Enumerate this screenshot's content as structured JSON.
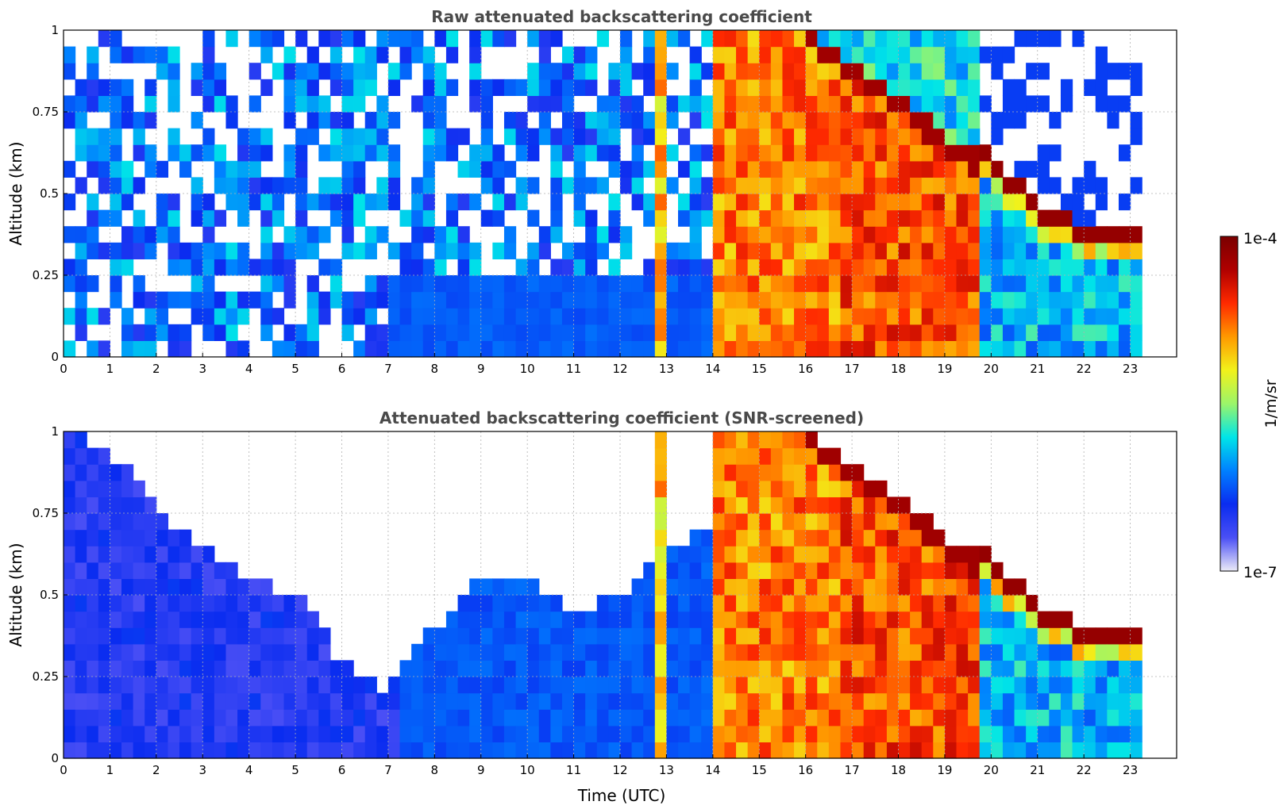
{
  "chart_data": [
    {
      "type": "heatmap",
      "title": "Raw attenuated backscattering coefficient",
      "xlabel": "",
      "ylabel": "Altitude (km)",
      "xlim": [
        0,
        24
      ],
      "ylim": [
        0,
        1
      ],
      "xticks": [
        "0",
        "1",
        "2",
        "3",
        "4",
        "5",
        "6",
        "7",
        "8",
        "9",
        "10",
        "11",
        "12",
        "13",
        "14",
        "15",
        "16",
        "17",
        "18",
        "19",
        "20",
        "21",
        "22",
        "23"
      ],
      "yticks": [
        "0",
        "0.25",
        "0.5",
        "0.75",
        "1"
      ],
      "grid": true,
      "data_extent_hours": [
        0,
        23.2
      ],
      "features": [
        {
          "name": "noise",
          "time_range": [
            0,
            12.8
          ],
          "altitude_range": [
            0.25,
            1
          ],
          "level_log10": -6.3
        },
        {
          "name": "surface layer",
          "time_range": [
            0,
            14
          ],
          "altitude_range": [
            0,
            0.25
          ],
          "level_log10": -6.2
        },
        {
          "name": "fog/cloud",
          "time_range": [
            14,
            19.7
          ],
          "altitude_range": [
            0,
            1
          ],
          "level_log10": -4.6
        },
        {
          "name": "cloud top",
          "time_range": [
            16.1,
            23.2
          ],
          "altitude_range": [
            0.3,
            1
          ],
          "level_log10": -4.1
        }
      ]
    },
    {
      "type": "heatmap",
      "title": "Attenuated backscattering coefficient (SNR-screened)",
      "xlabel": "Time (UTC)",
      "ylabel": "Altitude (km)",
      "xlim": [
        0,
        24
      ],
      "ylim": [
        0,
        1
      ],
      "xticks": [
        "0",
        "1",
        "2",
        "3",
        "4",
        "5",
        "6",
        "7",
        "8",
        "9",
        "10",
        "11",
        "12",
        "13",
        "14",
        "15",
        "16",
        "17",
        "18",
        "19",
        "20",
        "21",
        "22",
        "23"
      ],
      "yticks": [
        "0",
        "0.25",
        "0.5",
        "0.75",
        "1"
      ],
      "grid": true,
      "data_extent_hours": [
        0,
        23.2
      ],
      "boundary_layer_top_km": [
        [
          0,
          1.0
        ],
        [
          1,
          0.95
        ],
        [
          2,
          0.75
        ],
        [
          3,
          0.65
        ],
        [
          4,
          0.55
        ],
        [
          5,
          0.5
        ],
        [
          6,
          0.3
        ],
        [
          7,
          0.2
        ],
        [
          7.5,
          0.3
        ],
        [
          8,
          0.4
        ],
        [
          9,
          0.55
        ],
        [
          10,
          0.55
        ],
        [
          11,
          0.45
        ],
        [
          12,
          0.5
        ],
        [
          12.7,
          0.6
        ],
        [
          13,
          0.65
        ],
        [
          14,
          0.7
        ]
      ],
      "cloud_top_km": [
        [
          16.1,
          1.0
        ],
        [
          17,
          0.9
        ],
        [
          18,
          0.8
        ],
        [
          19,
          0.68
        ],
        [
          20,
          0.6
        ],
        [
          21,
          0.45
        ],
        [
          22,
          0.38
        ],
        [
          23,
          0.36
        ]
      ]
    }
  ],
  "colorbar": {
    "label": "1/m/sr",
    "max_label": "1e-4",
    "min_label": "1e-7",
    "colormap": "jet",
    "colors": [
      "#ecebf7",
      "#4a4ff5",
      "#0a2cf0",
      "#0080ff",
      "#00e5e8",
      "#9bf56a",
      "#f2f21a",
      "#ff9900",
      "#ff2a00",
      "#b00000",
      "#7a0000"
    ]
  }
}
